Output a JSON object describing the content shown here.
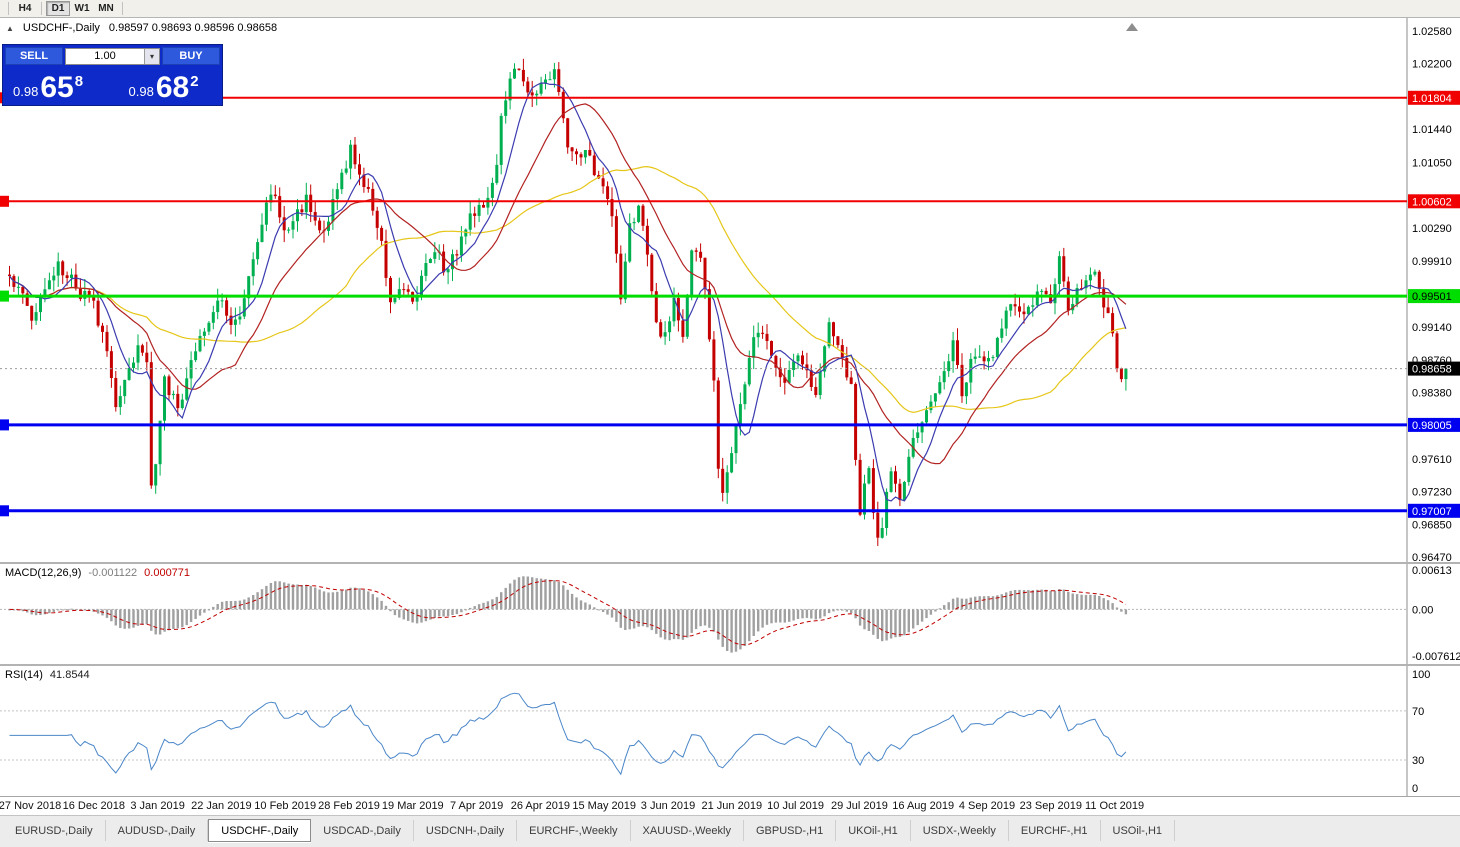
{
  "colors": {
    "candle_up": "#00b050",
    "candle_down": "#c40000",
    "ma_fast_blue": "#3b3bb0",
    "ma_mid_red": "#b22222",
    "ma_slow_yellow": "#e6c619",
    "macd_histogram": "#a0a0a0",
    "macd_signal": "#c00000",
    "rsi_line": "#4a86c8",
    "panel_blue": "#0e2ac8",
    "button_blue": "#2e59dd",
    "line_red": "#f00000",
    "line_green": "#00dd00",
    "line_blue": "#0000f0",
    "current_price_tag": "#000000"
  },
  "toolbar": {
    "timeframes": [
      {
        "label": "H4",
        "active": false
      },
      {
        "label": "D1",
        "active": true
      },
      {
        "label": "W1",
        "active": false
      },
      {
        "label": "MN",
        "active": false
      }
    ]
  },
  "chart_header": {
    "symbol_title": "USDCHF-,Daily",
    "ohlc_text": "0.98597 0.98693 0.98596 0.98658"
  },
  "trade_panel": {
    "sell_label": "SELL",
    "buy_label": "BUY",
    "volume": "1.00",
    "sell_price_main": "0.98",
    "sell_price_pips": "65",
    "sell_price_frac": "8",
    "buy_price_main": "0.98",
    "buy_price_pips": "68",
    "buy_price_frac": "2"
  },
  "tabs": [
    {
      "label": "EURUSD-,Daily",
      "active": false
    },
    {
      "label": "AUDUSD-,Daily",
      "active": false
    },
    {
      "label": "USDCHF-,Daily",
      "active": true
    },
    {
      "label": "USDCAD-,Daily",
      "active": false
    },
    {
      "label": "USDCNH-,Daily",
      "active": false
    },
    {
      "label": "EURCHF-,Weekly",
      "active": false
    },
    {
      "label": "XAUUSD-,Weekly",
      "active": false
    },
    {
      "label": "GBPUSD-,H1",
      "active": false
    },
    {
      "label": "UKOil-,H1",
      "active": false
    },
    {
      "label": "USDX-,Weekly",
      "active": false
    },
    {
      "label": "EURCHF-,H1",
      "active": false
    },
    {
      "label": "USOil-,H1",
      "active": false
    }
  ],
  "chart_data": {
    "type": "candlestick",
    "symbol": "USDCHF",
    "timeframe": "Daily",
    "ohlc_display": {
      "open": 0.98597,
      "high": 0.98693,
      "low": 0.98596,
      "close": 0.98658
    },
    "num_candles": 253,
    "price_axis": {
      "top_value": 1.0258,
      "bottom_value": 0.9647,
      "tick_step": 0.0038,
      "ticks": [
        1.0258,
        1.022,
        1.0182,
        1.0144,
        1.0105,
        1.0067,
        1.0029,
        0.9991,
        0.9952,
        0.9914,
        0.9876,
        0.9838,
        0.98,
        0.9761,
        0.9723,
        0.9685,
        0.9647
      ]
    },
    "hlines": [
      {
        "value": 1.01804,
        "label": "1.01804",
        "color": "#f00000",
        "text_color": "#ffffff",
        "width": 2
      },
      {
        "value": 1.00602,
        "label": "1.00602",
        "color": "#f00000",
        "text_color": "#ffffff",
        "width": 2
      },
      {
        "value": 0.99501,
        "label": "0.99501",
        "color": "#00dd00",
        "text_color": "#000000",
        "width": 3
      },
      {
        "value": 0.98005,
        "label": "0.98005",
        "color": "#0000f0",
        "text_color": "#ffffff",
        "width": 3
      },
      {
        "value": 0.97007,
        "label": "0.97007",
        "color": "#0000f0",
        "text_color": "#ffffff",
        "width": 3
      }
    ],
    "current_price": {
      "value": 0.98658,
      "label": "0.98658",
      "bg": "#000000",
      "text_color": "#ffffff"
    },
    "moving_averages": [
      {
        "period": 45,
        "color": "#e6c619"
      },
      {
        "period": 20,
        "color": "#b22222"
      },
      {
        "period": 8,
        "color": "#3b3bb0"
      }
    ],
    "price_path": [
      [
        0,
        0.9975
      ],
      [
        3,
        0.9952
      ],
      [
        5,
        0.993
      ],
      [
        8,
        0.9958
      ],
      [
        11,
        0.9985
      ],
      [
        13,
        0.9978
      ],
      [
        16,
        0.9952
      ],
      [
        19,
        0.9945
      ],
      [
        22,
        0.988
      ],
      [
        24,
        0.983
      ],
      [
        26,
        0.9855
      ],
      [
        29,
        0.989
      ],
      [
        31,
        0.9868
      ],
      [
        32,
        0.9728
      ],
      [
        33,
        0.976
      ],
      [
        35,
        0.9848
      ],
      [
        38,
        0.9818
      ],
      [
        41,
        0.987
      ],
      [
        43,
        0.9905
      ],
      [
        47,
        0.995
      ],
      [
        49,
        0.993
      ],
      [
        51,
        0.9915
      ],
      [
        54,
        0.9975
      ],
      [
        56,
        1.0005
      ],
      [
        59,
        1.0075
      ],
      [
        61,
        1.004
      ],
      [
        63,
        1.0025
      ],
      [
        65,
        1.0048
      ],
      [
        67,
        1.006
      ],
      [
        70,
        1.0018
      ],
      [
        72,
        1.0045
      ],
      [
        74,
        1.007
      ],
      [
        77,
        1.012
      ],
      [
        79,
        1.0098
      ],
      [
        82,
        1.0052
      ],
      [
        84,
        1.001
      ],
      [
        86,
        0.9938
      ],
      [
        88,
        0.9952
      ],
      [
        90,
        0.9962
      ],
      [
        92,
        0.994
      ],
      [
        94,
        0.999
      ],
      [
        97,
        0.9995
      ],
      [
        99,
        0.9978
      ],
      [
        101,
        1.0005
      ],
      [
        103,
        1.0035
      ],
      [
        106,
        1.0048
      ],
      [
        108,
        1.0068
      ],
      [
        110,
        1.011
      ],
      [
        111,
        1.016
      ],
      [
        113,
        1.0195
      ],
      [
        114,
        1.0215
      ],
      [
        116,
        1.0195
      ],
      [
        117,
        1.018
      ],
      [
        119,
        1.0192
      ],
      [
        120,
        1.0205
      ],
      [
        122,
        1.0198
      ],
      [
        123,
        1.0215
      ],
      [
        125,
        1.0165
      ],
      [
        126,
        1.013
      ],
      [
        128,
        1.011
      ],
      [
        130,
        1.0128
      ],
      [
        132,
        1.009
      ],
      [
        134,
        1.0072
      ],
      [
        136,
        1.004
      ],
      [
        138,
        0.995
      ],
      [
        140,
        1.004
      ],
      [
        142,
        1.0048
      ],
      [
        143,
        1.003
      ],
      [
        145,
        0.995
      ],
      [
        147,
        0.99
      ],
      [
        149,
        0.9925
      ],
      [
        150,
        0.994
      ],
      [
        152,
        0.99
      ],
      [
        154,
        1.0005
      ],
      [
        156,
        0.999
      ],
      [
        157,
        0.9965
      ],
      [
        159,
        0.985
      ],
      [
        160,
        0.9745
      ],
      [
        161,
        0.9722
      ],
      [
        163,
        0.977
      ],
      [
        166,
        0.9855
      ],
      [
        169,
        0.9915
      ],
      [
        172,
        0.9885
      ],
      [
        175,
        0.985
      ],
      [
        178,
        0.9875
      ],
      [
        180,
        0.9855
      ],
      [
        182,
        0.983
      ],
      [
        185,
        0.992
      ],
      [
        188,
        0.9885
      ],
      [
        190,
        0.984
      ],
      [
        191,
        0.976
      ],
      [
        192,
        0.9705
      ],
      [
        194,
        0.9745
      ],
      [
        196,
        0.9665
      ],
      [
        197,
        0.968
      ],
      [
        199,
        0.9755
      ],
      [
        201,
        0.9715
      ],
      [
        204,
        0.979
      ],
      [
        207,
        0.9815
      ],
      [
        210,
        0.9845
      ],
      [
        213,
        0.9895
      ],
      [
        215,
        0.984
      ],
      [
        218,
        0.9885
      ],
      [
        221,
        0.987
      ],
      [
        224,
        0.992
      ],
      [
        227,
        0.9945
      ],
      [
        230,
        0.993
      ],
      [
        232,
        0.9955
      ],
      [
        235,
        0.9945
      ],
      [
        237,
        0.999
      ],
      [
        239,
        0.9935
      ],
      [
        242,
        0.9965
      ],
      [
        245,
        0.9985
      ],
      [
        247,
        0.9945
      ],
      [
        249,
        0.9905
      ],
      [
        251,
        0.9845
      ],
      [
        252,
        0.98658
      ]
    ],
    "macd": {
      "label": "MACD(12,26,9)",
      "fast": 12,
      "slow": 26,
      "signal": 9,
      "value_main": "-0.001122",
      "value_signal": "0.000771",
      "axis_labels": [
        "0.00613",
        "0.00",
        "-0.007612"
      ],
      "axis_top_value": 0.00613,
      "axis_bottom_value": -0.007612
    },
    "rsi": {
      "label": "RSI(14)",
      "period": 14,
      "value": "41.8544",
      "levels": [
        70,
        30
      ],
      "axis_labels": [
        "100",
        "70",
        "30",
        "0"
      ],
      "axis_values": [
        100,
        70,
        30,
        0
      ]
    },
    "dates": [
      "27 Nov 2018",
      "16 Dec 2018",
      "3 Jan 2019",
      "22 Jan 2019",
      "10 Feb 2019",
      "28 Feb 2019",
      "19 Mar 2019",
      "7 Apr 2019",
      "26 Apr 2019",
      "15 May 2019",
      "3 Jun 2019",
      "21 Jun 2019",
      "10 Jul 2019",
      "29 Jul 2019",
      "16 Aug 2019",
      "4 Sep 2019",
      "23 Sep 2019",
      "11 Oct 2019"
    ]
  }
}
